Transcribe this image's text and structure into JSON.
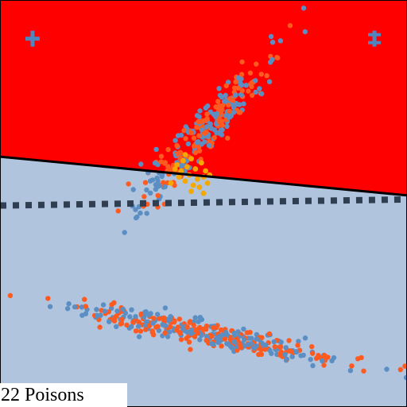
{
  "caption": {
    "text": "22 Poisons"
  },
  "colors": {
    "frame": "#000000",
    "region_upper": "#ff0000",
    "region_lower": "#b0c4de",
    "decision_boundary": "#000000",
    "clean_boundary": "#2f3e50",
    "class_blue": "#5b8fc4",
    "class_orange": "#ff5a1f",
    "poison": "#f5a800",
    "marker": "#4e86c0"
  },
  "markers": [
    {
      "name": "plus-marker",
      "icon": "plus-icon",
      "x": -0.84,
      "y": 0.81
    },
    {
      "name": "double-cross-marker",
      "icon": "double-cross-icon",
      "x": 0.84,
      "y": 0.81
    }
  ],
  "chart_data": {
    "type": "scatter",
    "title": "",
    "xlabel": "",
    "ylabel": "",
    "xlim": [
      -1,
      1
    ],
    "ylim": [
      -1,
      1
    ],
    "grid": false,
    "legend": "none",
    "decision_boundary": {
      "style": "solid",
      "points": [
        [
          -1.0,
          0.23
        ],
        [
          1.0,
          0.04
        ]
      ]
    },
    "clean_boundary": {
      "style": "dotted",
      "points": [
        [
          -1.0,
          -0.01
        ],
        [
          1.0,
          0.02
        ]
      ]
    },
    "upper_cluster": {
      "center": [
        0.0,
        0.35
      ],
      "direction_deg": 48,
      "length_sd": 0.24,
      "width_sd": 0.045,
      "count_blue": 160,
      "count_orange": 140
    },
    "lower_cluster": {
      "center": [
        0.02,
        -0.64
      ],
      "direction_deg": -11,
      "length_sd": 0.34,
      "width_sd": 0.028,
      "count_blue": 180,
      "count_orange": 190
    },
    "poison_points": {
      "count": 22,
      "points": [
        [
          -0.13,
          0.19
        ],
        [
          -0.1,
          0.21
        ],
        [
          -0.11,
          0.16
        ],
        [
          -0.08,
          0.18
        ],
        [
          -0.06,
          0.22
        ],
        [
          -0.07,
          0.14
        ],
        [
          -0.04,
          0.17
        ],
        [
          -0.03,
          0.12
        ],
        [
          -0.09,
          0.11
        ],
        [
          -0.05,
          0.09
        ],
        [
          0.0,
          0.13
        ],
        [
          0.01,
          0.16
        ],
        [
          -0.01,
          0.2
        ],
        [
          0.02,
          0.1
        ],
        [
          -0.12,
          0.13
        ],
        [
          -0.14,
          0.17
        ],
        [
          -0.06,
          0.06
        ],
        [
          -0.02,
          0.08
        ],
        [
          0.03,
          0.14
        ],
        [
          -0.16,
          0.1
        ],
        [
          -0.09,
          0.24
        ],
        [
          0.0,
          0.05
        ]
      ]
    }
  }
}
